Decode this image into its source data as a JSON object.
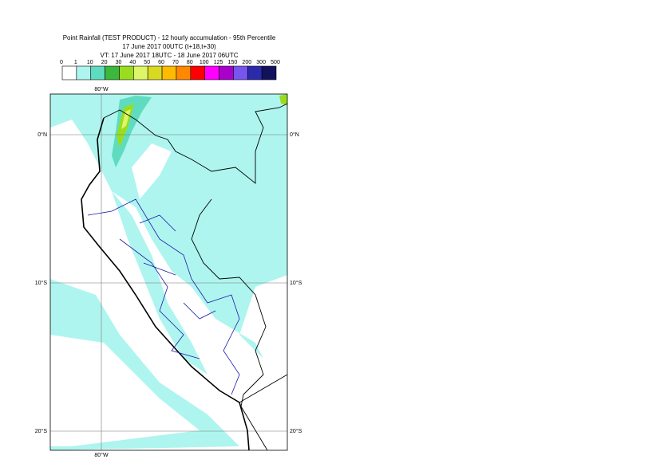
{
  "header": {
    "title_lines": [
      "Point Rainfall (TEST PRODUCT) - 12 hourly accumulation - 95th Percentile",
      "17 June 2017 00UTC (t+18,t+30)",
      "VT: 17 June 2017 18UTC - 18 June 2017 06UTC"
    ]
  },
  "legend": {
    "labels": [
      0,
      1,
      10,
      20,
      30,
      40,
      50,
      60,
      70,
      80,
      100,
      125,
      150,
      200,
      300,
      500
    ],
    "colors": [
      "#ffffff",
      "#aef5ef",
      "#5fdcbf",
      "#3cb83c",
      "#99dd1e",
      "#ddf566",
      "#d9d922",
      "#ffbb00",
      "#ff8800",
      "#ff0000",
      "#ff00ff",
      "#aa00cc",
      "#7755ee",
      "#2a2aaa",
      "#11115e"
    ]
  },
  "map": {
    "lon_labels": [
      "80°W"
    ],
    "lat_labels": [
      "0°N",
      "10°S",
      "20°S"
    ]
  }
}
